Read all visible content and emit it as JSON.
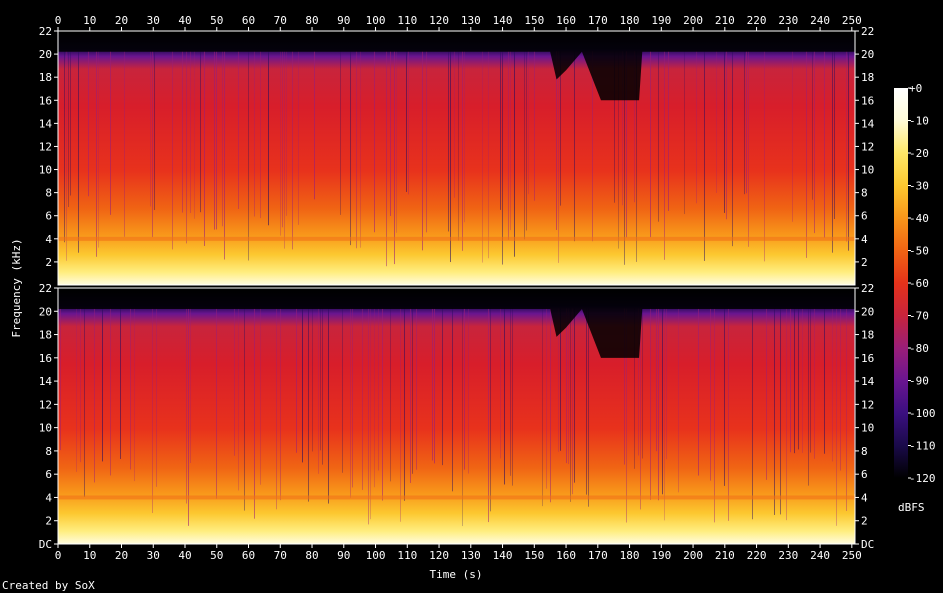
{
  "chart_data": {
    "type": "heatmap",
    "title": "",
    "xlabel": "Time (s)",
    "ylabel": "Frequency (kHz)",
    "x_ticks": [
      0,
      10,
      20,
      30,
      40,
      50,
      60,
      70,
      80,
      90,
      100,
      110,
      120,
      130,
      140,
      150,
      160,
      170,
      180,
      190,
      200,
      210,
      220,
      230,
      240,
      250
    ],
    "xlim": [
      0,
      251
    ],
    "channels": [
      {
        "y_tick_labels": [
          "22",
          "20",
          "18",
          "16",
          "14",
          "12",
          "10",
          "8",
          "6",
          "4",
          "2"
        ],
        "y_tick_values": [
          22,
          20,
          18,
          16,
          14,
          12,
          10,
          8,
          6,
          4,
          2
        ],
        "ylim": [
          0,
          22
        ]
      },
      {
        "y_tick_labels": [
          "22",
          "20",
          "18",
          "16",
          "14",
          "12",
          "10",
          "8",
          "6",
          "4",
          "2",
          "DC"
        ],
        "y_tick_values": [
          22,
          20,
          18,
          16,
          14,
          12,
          10,
          8,
          6,
          4,
          2,
          0
        ],
        "ylim": [
          0,
          22
        ]
      }
    ],
    "colorbar": {
      "label": "dBFS",
      "tick_labels": [
        "+0",
        "-10",
        "-20",
        "-30",
        "-40",
        "-50",
        "-60",
        "-70",
        "-80",
        "-90",
        "-100",
        "-110",
        "-120"
      ],
      "tick_values": [
        0,
        -10,
        -20,
        -30,
        -40,
        -50,
        -60,
        -70,
        -80,
        -90,
        -100,
        -110,
        -120
      ],
      "range": [
        -120,
        0
      ],
      "colors": [
        "#000000",
        "#1a0a4a",
        "#3b0f80",
        "#6a1590",
        "#9a1e78",
        "#c8243c",
        "#e5321a",
        "#f06414",
        "#f8961a",
        "#fcc830",
        "#ffe868",
        "#fffbd8",
        "#ffffff"
      ]
    },
    "approx_cutoff_khz": [
      {
        "t": 0,
        "khz": 20.2
      },
      {
        "t": 155,
        "khz": 20.2
      },
      {
        "t": 157,
        "khz": 17.8
      },
      {
        "t": 160,
        "khz": 18.6
      },
      {
        "t": 165,
        "khz": 20.2
      },
      {
        "t": 171,
        "khz": 16.0
      },
      {
        "t": 183,
        "khz": 16.0
      },
      {
        "t": 184,
        "khz": 20.2
      },
      {
        "t": 251,
        "khz": 20.2
      }
    ],
    "credit": "Created by SoX"
  }
}
